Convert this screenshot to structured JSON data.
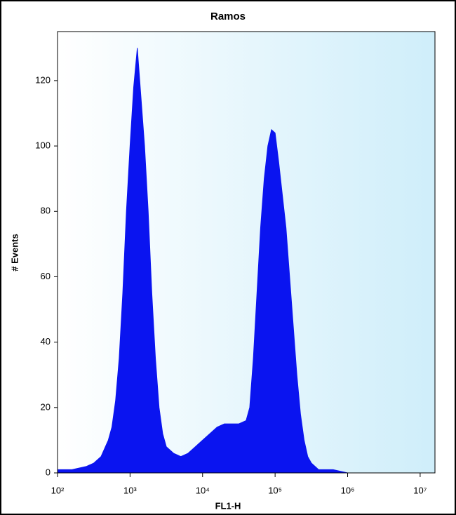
{
  "chart_data": {
    "type": "area",
    "title": "Ramos",
    "x_label": "FL1-H",
    "y_label": "# Events",
    "xscale": "log",
    "color": "#0a14f0",
    "x": [
      100,
      158,
      251,
      316,
      398,
      501,
      562,
      631,
      708,
      794,
      891,
      1000,
      1122,
      1259,
      1413,
      1585,
      1778,
      1995,
      2239,
      2512,
      2818,
      3162,
      3981,
      5012,
      6310,
      7943,
      10000,
      12589,
      15849,
      19953,
      25119,
      31623,
      39811,
      44668,
      50119,
      56234,
      63096,
      70795,
      79433,
      89125,
      100000,
      112202,
      125893,
      141254,
      158489,
      177828,
      199526,
      223872,
      251189,
      281838,
      316228,
      398107,
      630957,
      1000000,
      3162278,
      10000000
    ],
    "values": [
      1,
      1,
      2,
      3,
      5,
      10,
      14,
      22,
      35,
      55,
      80,
      100,
      118,
      130,
      115,
      100,
      80,
      55,
      35,
      20,
      12,
      8,
      6,
      5,
      6,
      8,
      10,
      12,
      14,
      15,
      15,
      15,
      16,
      20,
      35,
      55,
      75,
      90,
      100,
      105,
      104,
      95,
      85,
      75,
      60,
      45,
      30,
      18,
      10,
      5,
      3,
      1,
      1,
      0,
      0,
      0
    ],
    "xlim": [
      100,
      16000000
    ],
    "xticks": [
      {
        "value": 100,
        "label": "10²"
      },
      {
        "value": 1000,
        "label": "10³"
      },
      {
        "value": 10000,
        "label": "10⁴"
      },
      {
        "value": 100000,
        "label": "10⁵"
      },
      {
        "value": 1000000,
        "label": "10⁶"
      },
      {
        "value": 10000000,
        "label": "10⁷"
      }
    ],
    "ylim": [
      0,
      135
    ],
    "yticks": [
      0,
      20,
      40,
      60,
      80,
      100,
      120
    ]
  }
}
